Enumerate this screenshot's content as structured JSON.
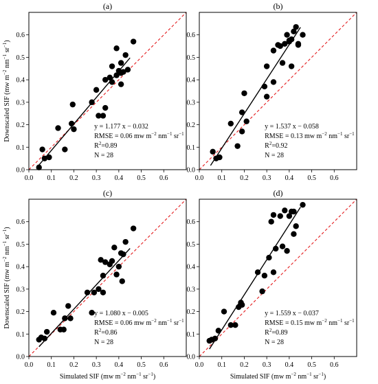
{
  "figure": {
    "shared_xlabel": "Simulated SIF (mw m⁻² nm⁻¹ sr⁻¹)",
    "shared_ylabel": "Downscaled SIF (mw m⁻² nm⁻¹ sr⁻¹)"
  },
  "chart_data": [
    {
      "type": "scatter",
      "panel": "(a)",
      "title": "(a)",
      "xlabel": "",
      "ylabel": "Downscaled SIF (mw m⁻² nm⁻¹ sr⁻¹)",
      "xlim": [
        0.0,
        0.7
      ],
      "ylim": [
        0.0,
        0.7
      ],
      "xticks": [
        "0.0",
        "0.1",
        "0.2",
        "0.3",
        "0.4",
        "0.5",
        "0.6"
      ],
      "yticks": [
        "0.0",
        "0.1",
        "0.2",
        "0.3",
        "0.4",
        "0.5",
        "0.6"
      ],
      "points": [
        [
          0.045,
          0.01
        ],
        [
          0.06,
          0.09
        ],
        [
          0.07,
          0.05
        ],
        [
          0.09,
          0.055
        ],
        [
          0.13,
          0.185
        ],
        [
          0.16,
          0.09
        ],
        [
          0.19,
          0.205
        ],
        [
          0.2,
          0.18
        ],
        [
          0.195,
          0.29
        ],
        [
          0.28,
          0.3
        ],
        [
          0.3,
          0.355
        ],
        [
          0.31,
          0.24
        ],
        [
          0.33,
          0.24
        ],
        [
          0.34,
          0.275
        ],
        [
          0.34,
          0.4
        ],
        [
          0.36,
          0.41
        ],
        [
          0.37,
          0.39
        ],
        [
          0.37,
          0.46
        ],
        [
          0.39,
          0.42
        ],
        [
          0.39,
          0.54
        ],
        [
          0.4,
          0.44
        ],
        [
          0.41,
          0.38
        ],
        [
          0.41,
          0.43
        ],
        [
          0.41,
          0.475
        ],
        [
          0.42,
          0.435
        ],
        [
          0.43,
          0.51
        ],
        [
          0.44,
          0.445
        ],
        [
          0.465,
          0.57
        ]
      ],
      "fit_line": {
        "slope": 1.177,
        "intercept": -0.032,
        "x_range": [
          0.045,
          0.45
        ]
      },
      "one_to_one_line": true,
      "annotations": [
        "y = 1.177 x − 0.032",
        "RMSE = 0.06 mw m⁻² nm⁻¹ sr⁻¹",
        "R²=0.89",
        "N = 28"
      ]
    },
    {
      "type": "scatter",
      "panel": "(b)",
      "title": "(b)",
      "xlabel": "",
      "ylabel": "",
      "xlim": [
        0.0,
        0.7
      ],
      "ylim": [
        0.0,
        0.7
      ],
      "xticks": [
        "0.0",
        "0.1",
        "0.2",
        "0.3",
        "0.4",
        "0.5",
        "0.6"
      ],
      "yticks": [
        "0.0",
        "0.1",
        "0.2",
        "0.3",
        "0.4",
        "0.5",
        "0.6"
      ],
      "points": [
        [
          0.06,
          0.08
        ],
        [
          0.075,
          0.05
        ],
        [
          0.09,
          0.055
        ],
        [
          0.14,
          0.205
        ],
        [
          0.17,
          0.105
        ],
        [
          0.19,
          0.17
        ],
        [
          0.19,
          0.255
        ],
        [
          0.2,
          0.34
        ],
        [
          0.21,
          0.215
        ],
        [
          0.29,
          0.37
        ],
        [
          0.3,
          0.46
        ],
        [
          0.3,
          0.325
        ],
        [
          0.33,
          0.39
        ],
        [
          0.33,
          0.53
        ],
        [
          0.35,
          0.555
        ],
        [
          0.36,
          0.55
        ],
        [
          0.37,
          0.475
        ],
        [
          0.38,
          0.56
        ],
        [
          0.39,
          0.6
        ],
        [
          0.4,
          0.575
        ],
        [
          0.41,
          0.58
        ],
        [
          0.41,
          0.46
        ],
        [
          0.42,
          0.615
        ],
        [
          0.43,
          0.635
        ],
        [
          0.44,
          0.555
        ],
        [
          0.46,
          0.6
        ],
        [
          0.44,
          0.56
        ],
        [
          0.4,
          0.57
        ]
      ],
      "fit_line": {
        "slope": 1.537,
        "intercept": -0.058,
        "x_range": [
          0.05,
          0.45
        ]
      },
      "one_to_one_line": true,
      "annotations": [
        "y = 1.537 x − 0.058",
        "RMSE = 0.13 mw m⁻² nm⁻¹ sr⁻¹",
        "R²=0.92",
        "N = 28"
      ]
    },
    {
      "type": "scatter",
      "panel": "(c)",
      "title": "(c)",
      "xlabel": "Simulated SIF (mw m⁻² nm⁻¹ sr⁻¹)",
      "ylabel": "Downscaled SIF (mw m⁻² nm⁻¹ sr⁻¹)",
      "xlim": [
        0.0,
        0.7
      ],
      "ylim": [
        0.0,
        0.7
      ],
      "xticks": [
        "0.0",
        "0.1",
        "0.2",
        "0.3",
        "0.4",
        "0.5",
        "0.6"
      ],
      "yticks": [
        "0.0",
        "0.1",
        "0.2",
        "0.3",
        "0.4",
        "0.5",
        "0.6"
      ],
      "points": [
        [
          0.045,
          0.075
        ],
        [
          0.055,
          0.085
        ],
        [
          0.07,
          0.08
        ],
        [
          0.08,
          0.11
        ],
        [
          0.11,
          0.195
        ],
        [
          0.14,
          0.12
        ],
        [
          0.155,
          0.12
        ],
        [
          0.16,
          0.17
        ],
        [
          0.175,
          0.225
        ],
        [
          0.185,
          0.17
        ],
        [
          0.26,
          0.285
        ],
        [
          0.28,
          0.195
        ],
        [
          0.29,
          0.285
        ],
        [
          0.31,
          0.3
        ],
        [
          0.32,
          0.43
        ],
        [
          0.33,
          0.36
        ],
        [
          0.34,
          0.42
        ],
        [
          0.36,
          0.41
        ],
        [
          0.37,
          0.425
        ],
        [
          0.38,
          0.485
        ],
        [
          0.39,
          0.365
        ],
        [
          0.4,
          0.4
        ],
        [
          0.41,
          0.46
        ],
        [
          0.415,
          0.335
        ],
        [
          0.42,
          0.455
        ],
        [
          0.43,
          0.51
        ],
        [
          0.465,
          0.57
        ],
        [
          0.33,
          0.285
        ]
      ],
      "fit_line": {
        "slope": 1.08,
        "intercept": -0.005,
        "x_range": [
          0.045,
          0.45
        ]
      },
      "one_to_one_line": true,
      "annotations": [
        "y = 1.080 x − 0.005",
        "RMSE = 0.06 mw m⁻² nm⁻¹ sr⁻¹",
        "R²=0.86",
        "N = 28"
      ]
    },
    {
      "type": "scatter",
      "panel": "(d)",
      "title": "(d)",
      "xlabel": "Simulated SIF (mw m⁻² nm⁻¹ sr⁻¹)",
      "ylabel": "",
      "xlim": [
        0.0,
        0.7
      ],
      "ylim": [
        0.0,
        0.7
      ],
      "xticks": [
        "0.0",
        "0.1",
        "0.2",
        "0.3",
        "0.4",
        "0.5",
        "0.6"
      ],
      "yticks": [
        "0.0",
        "0.1",
        "0.2",
        "0.3",
        "0.4",
        "0.5",
        "0.6"
      ],
      "points": [
        [
          0.045,
          0.07
        ],
        [
          0.055,
          0.075
        ],
        [
          0.07,
          0.08
        ],
        [
          0.085,
          0.115
        ],
        [
          0.11,
          0.2
        ],
        [
          0.14,
          0.14
        ],
        [
          0.16,
          0.14
        ],
        [
          0.175,
          0.22
        ],
        [
          0.185,
          0.24
        ],
        [
          0.19,
          0.23
        ],
        [
          0.26,
          0.375
        ],
        [
          0.28,
          0.29
        ],
        [
          0.29,
          0.36
        ],
        [
          0.31,
          0.44
        ],
        [
          0.32,
          0.6
        ],
        [
          0.33,
          0.63
        ],
        [
          0.34,
          0.48
        ],
        [
          0.36,
          0.625
        ],
        [
          0.37,
          0.49
        ],
        [
          0.38,
          0.65
        ],
        [
          0.39,
          0.47
        ],
        [
          0.4,
          0.625
        ],
        [
          0.41,
          0.645
        ],
        [
          0.42,
          0.545
        ],
        [
          0.42,
          0.645
        ],
        [
          0.43,
          0.58
        ],
        [
          0.46,
          0.675
        ],
        [
          0.33,
          0.375
        ]
      ],
      "fit_line": {
        "slope": 1.559,
        "intercept": -0.037,
        "x_range": [
          0.045,
          0.45
        ]
      },
      "one_to_one_line": true,
      "annotations": [
        "y = 1.559 x − 0.037",
        "RMSE = 0.15 mw m⁻² nm⁻¹ sr⁻¹",
        "R²=0.89",
        "N = 28"
      ]
    }
  ]
}
